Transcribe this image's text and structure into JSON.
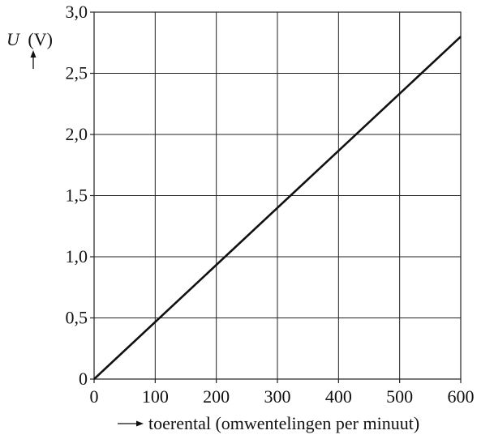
{
  "chart_data": {
    "type": "line",
    "title": "",
    "ylabel": {
      "symbol": "U",
      "unit": "(V)"
    },
    "xlabel": "toerental (omwentelingen per minuut)",
    "xlim": [
      0,
      600
    ],
    "ylim": [
      0,
      3.0
    ],
    "x_ticks": [
      0,
      100,
      200,
      300,
      400,
      500,
      600
    ],
    "x_tick_labels": [
      "0",
      "100",
      "200",
      "300",
      "400",
      "500",
      "600"
    ],
    "y_ticks": [
      0,
      0.5,
      1.0,
      1.5,
      2.0,
      2.5,
      3.0
    ],
    "y_tick_labels": [
      "0",
      "0,5",
      "1,0",
      "1,5",
      "2,0",
      "2,5",
      "3,0"
    ],
    "grid": true,
    "series": [
      {
        "x": [
          0,
          600
        ],
        "y": [
          0,
          2.8
        ]
      }
    ]
  }
}
